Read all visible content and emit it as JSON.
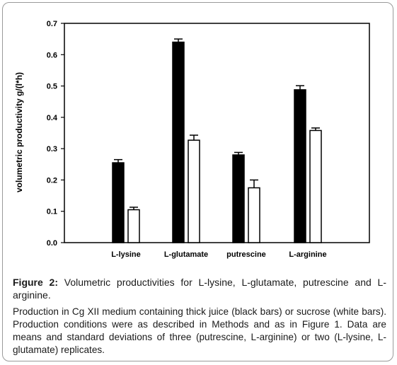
{
  "chart_data": {
    "type": "bar",
    "categories": [
      "L-lysine",
      "L-glutamate",
      "putrescine",
      "L-arginine"
    ],
    "series": [
      {
        "values": [
          0.255,
          0.64,
          0.28,
          0.488
        ],
        "errors": [
          0.01,
          0.01,
          0.008,
          0.013
        ],
        "color": "#000000"
      },
      {
        "values": [
          0.105,
          0.327,
          0.175,
          0.358
        ],
        "errors": [
          0.008,
          0.016,
          0.025,
          0.008
        ],
        "color": "#ffffff"
      }
    ],
    "ylabel": "volumetric productivity g/(l*h)",
    "ylim": [
      0,
      0.7
    ],
    "yticks": [
      "0.0",
      "0.1",
      "0.2",
      "0.3",
      "0.4",
      "0.5",
      "0.6",
      "0.7"
    ],
    "grid": false
  },
  "caption": {
    "label": "Figure 2:",
    "title": "Volumetric productivities for L-lysine, L-glutamate, putrescine and L-arginine.",
    "detail": "Production in Cg XII medium containing thick juice (black bars) or sucrose (white bars). Production conditions were as described in Methods and as in Figure 1. Data are means and standard deviations of three (putrescine, L-arginine) or two (L-lysine, L-glutamate) replicates."
  }
}
